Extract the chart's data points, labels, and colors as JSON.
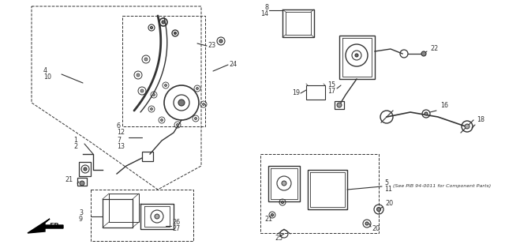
{
  "bg_color": "#ffffff",
  "line_color": "#333333",
  "fig_width": 6.4,
  "fig_height": 3.19,
  "dpi": 100,
  "parts": {
    "note": "(See PIB 94-0011 for Component Parts)"
  }
}
